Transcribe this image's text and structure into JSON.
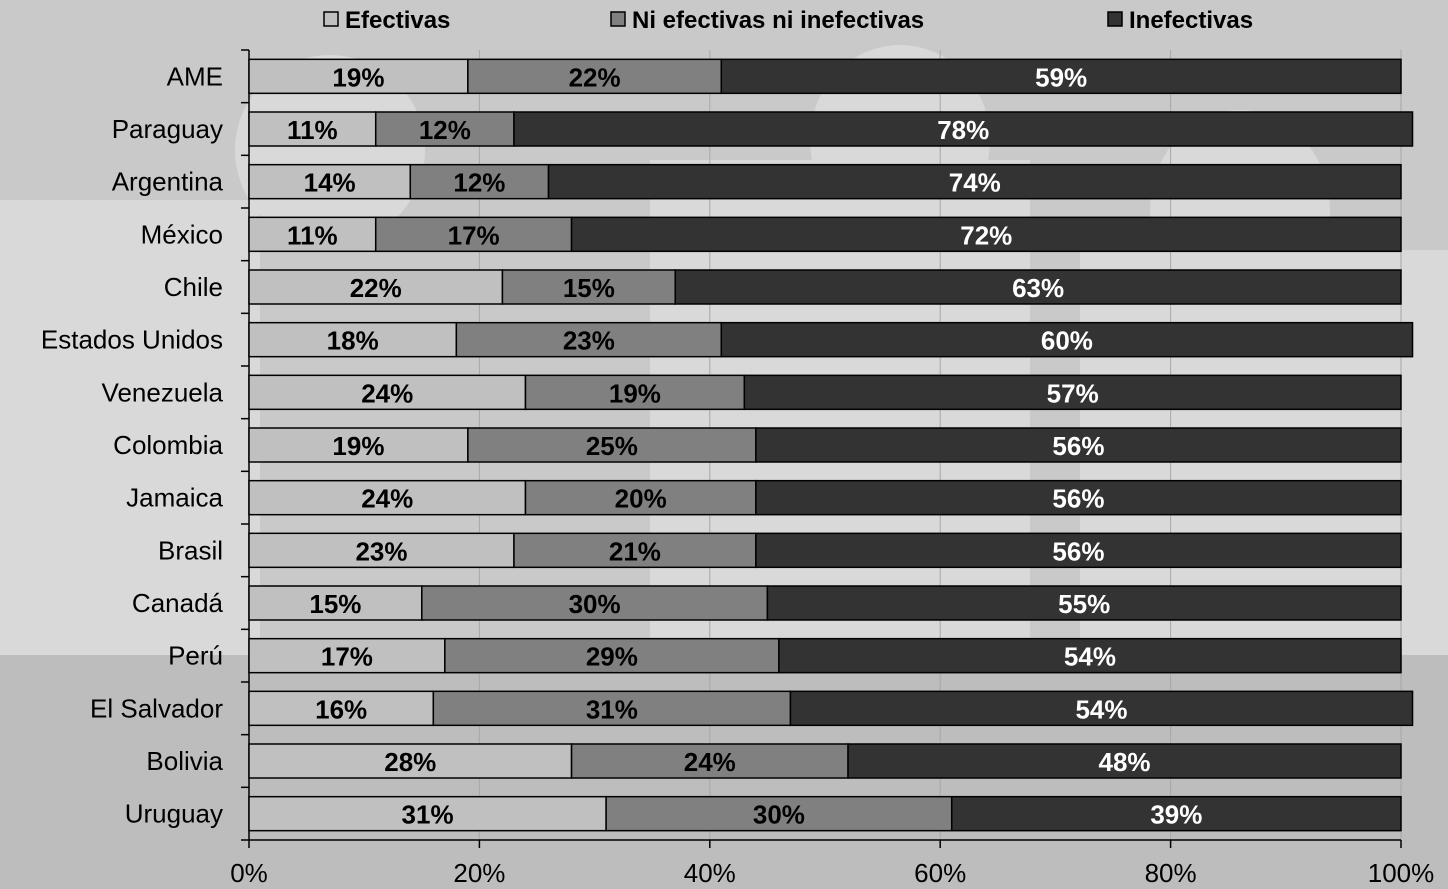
{
  "chart_data": {
    "type": "bar",
    "orientation": "horizontal",
    "stacked": "percent",
    "title": "",
    "xlabel": "",
    "ylabel": "",
    "xlim": [
      0,
      100
    ],
    "x_ticks": [
      "0%",
      "20%",
      "40%",
      "60%",
      "80%",
      "100%"
    ],
    "legend_position": "top",
    "categories": [
      "AME",
      "Paraguay",
      "Argentina",
      "México",
      "Chile",
      "Estados Unidos",
      "Venezuela",
      "Colombia",
      "Jamaica",
      "Brasil",
      "Canadá",
      "Perú",
      "El Salvador",
      "Bolivia",
      "Uruguay"
    ],
    "series": [
      {
        "name": "Efectivas",
        "color": "#c0c0c0",
        "label_color": "#000000",
        "values": [
          19,
          11,
          14,
          11,
          22,
          18,
          24,
          19,
          24,
          23,
          15,
          17,
          16,
          28,
          31
        ],
        "labels": [
          "19%",
          "11%",
          "14%",
          "11%",
          "22%",
          "18%",
          "24%",
          "19%",
          "24%",
          "23%",
          "15%",
          "17%",
          "16%",
          "28%",
          "31%"
        ]
      },
      {
        "name": "Ni efectivas ni inefectivas",
        "color": "#808080",
        "label_color": "#000000",
        "values": [
          22,
          12,
          12,
          17,
          15,
          23,
          19,
          25,
          20,
          21,
          30,
          29,
          31,
          24,
          30
        ],
        "labels": [
          "22%",
          "12%",
          "12%",
          "17%",
          "15%",
          "23%",
          "19%",
          "25%",
          "20%",
          "21%",
          "30%",
          "29%",
          "31%",
          "24%",
          "30%"
        ]
      },
      {
        "name": "Inefectivas",
        "color": "#333333",
        "label_color": "#ffffff",
        "values": [
          59,
          78,
          74,
          72,
          63,
          60,
          57,
          56,
          56,
          56,
          55,
          54,
          54,
          48,
          39
        ],
        "labels": [
          "59%",
          "78%",
          "74%",
          "72%",
          "63%",
          "60%",
          "57%",
          "56%",
          "56%",
          "56%",
          "55%",
          "54%",
          "54%",
          "48%",
          "39%"
        ]
      }
    ]
  }
}
